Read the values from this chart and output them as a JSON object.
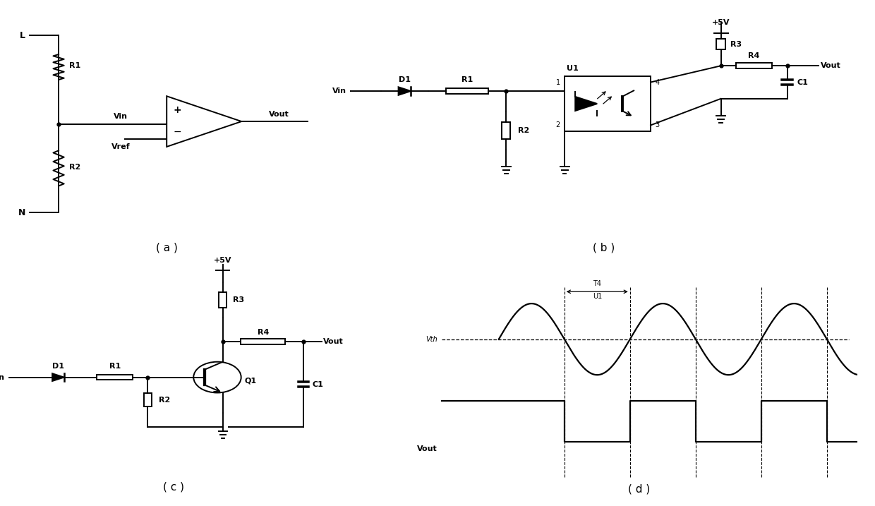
{
  "background_color": "#ffffff",
  "label_a": "( a )",
  "label_b": "( b )",
  "label_c": "( c )",
  "label_d": "( d )",
  "font_size_label": 11,
  "lw": 1.4
}
